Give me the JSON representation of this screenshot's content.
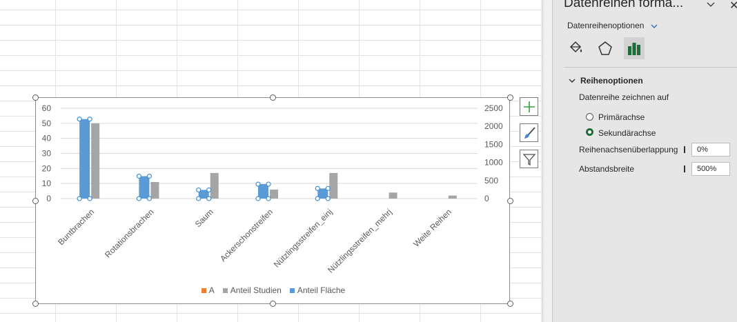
{
  "chart_data": {
    "type": "bar",
    "categories": [
      "Buntbrachen",
      "Rotationsbrachen",
      "Saum",
      "Ackerschonstreifen",
      "Nützlingsstreifen_einj",
      "Nützlingsstreifen_mehrj",
      "Weite Reihen"
    ],
    "series": [
      {
        "name": "A",
        "axis": "primary",
        "color": "#ed7d31",
        "values": [
          0,
          0,
          0,
          0,
          0,
          0,
          0
        ]
      },
      {
        "name": "Anteil Studien",
        "axis": "primary",
        "color": "#a5a5a5",
        "values": [
          50,
          11,
          17,
          6,
          17,
          4,
          2
        ]
      },
      {
        "name": "Anteil Fläche",
        "axis": "secondary",
        "color": "#5b9bd5",
        "values": [
          2200,
          620,
          240,
          400,
          280,
          0,
          0
        ],
        "selected": true
      }
    ],
    "y_primary": {
      "ticks": [
        "60",
        "50",
        "40",
        "30",
        "20",
        "10",
        "0"
      ],
      "range": [
        0,
        60
      ]
    },
    "y_secondary": {
      "ticks": [
        "2500",
        "2000",
        "1500",
        "1000",
        "500",
        "0"
      ],
      "range": [
        0,
        2500
      ]
    },
    "legend": "bottom",
    "grid": true
  },
  "chart_tools": {
    "add_element": "add-chart-element",
    "styles": "chart-styles",
    "filter": "chart-filters"
  },
  "pane": {
    "title": "Datenreihen forma...",
    "options_tab": "Datenreihenoptionen",
    "section": "Reihenoptionen",
    "plot_on_label": "Datenreihe zeichnen auf",
    "primary_axis": "Primärachse",
    "secondary_axis": "Sekundärachse",
    "selected_axis": "secondary",
    "overlap_label": "Reihenachsenüberlappung",
    "overlap_value": "0%",
    "gap_label": "Abstandsbreite",
    "gap_value": "500%",
    "accent_color": "#1e6b3a"
  }
}
